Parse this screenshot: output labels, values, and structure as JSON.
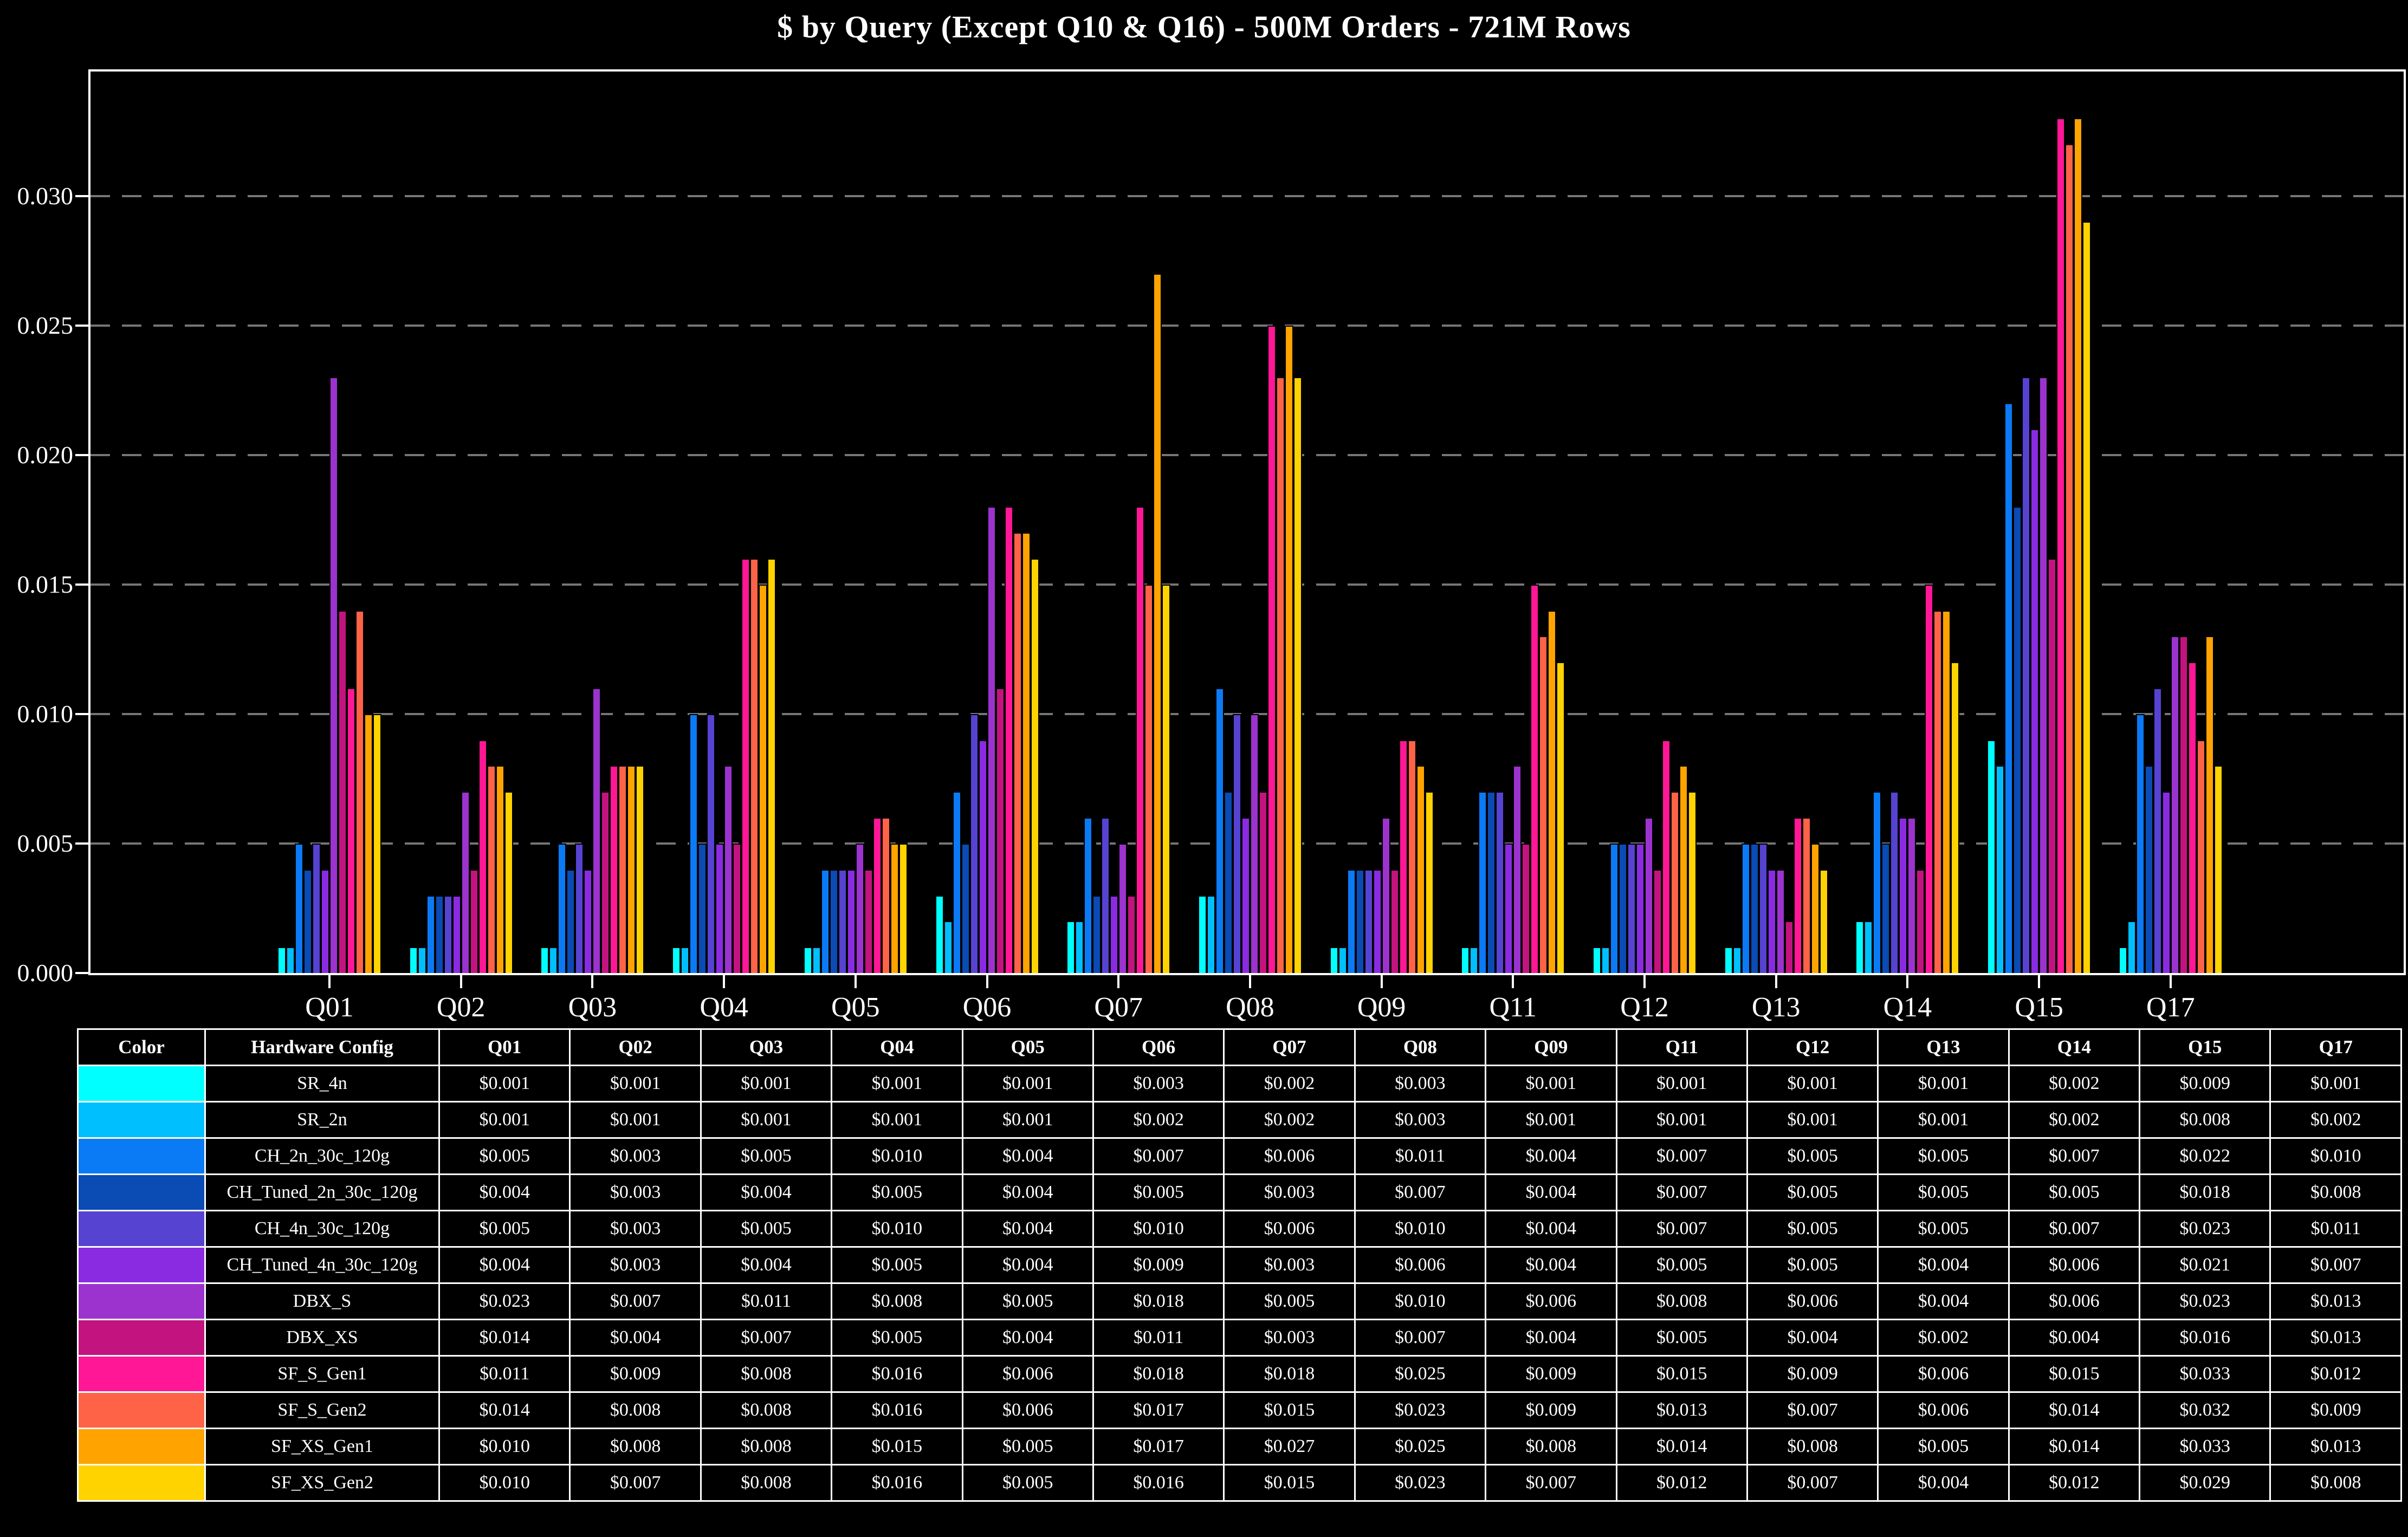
{
  "title": "$ by Query (Except Q10 & Q16) - 500M Orders - 721M Rows",
  "chart_data": {
    "type": "bar",
    "title": "$ by Query (Except Q10 & Q16) - 500M Orders - 721M Rows",
    "xlabel": "",
    "ylabel": "",
    "ylim": [
      0,
      0.0348
    ],
    "y_ticks": [
      0.0,
      0.005,
      0.01,
      0.015,
      0.02,
      0.025,
      0.03
    ],
    "grid": "horizontal-dashed",
    "legend_position": "table-below-chart",
    "categories": [
      "Q01",
      "Q02",
      "Q03",
      "Q04",
      "Q05",
      "Q06",
      "Q07",
      "Q08",
      "Q09",
      "Q11",
      "Q12",
      "Q13",
      "Q14",
      "Q15",
      "Q17"
    ],
    "series": [
      {
        "name": "SR_4n",
        "color": "#00FFFF",
        "values": [
          0.001,
          0.001,
          0.001,
          0.001,
          0.001,
          0.003,
          0.002,
          0.003,
          0.001,
          0.001,
          0.001,
          0.001,
          0.002,
          0.009,
          0.001
        ]
      },
      {
        "name": "SR_2n",
        "color": "#00BFFF",
        "values": [
          0.001,
          0.001,
          0.001,
          0.001,
          0.001,
          0.002,
          0.002,
          0.003,
          0.001,
          0.001,
          0.001,
          0.001,
          0.002,
          0.008,
          0.002
        ]
      },
      {
        "name": "CH_2n_30c_120g",
        "color": "#0B7AF5",
        "values": [
          0.005,
          0.003,
          0.005,
          0.01,
          0.004,
          0.007,
          0.006,
          0.011,
          0.004,
          0.007,
          0.005,
          0.005,
          0.007,
          0.022,
          0.01
        ]
      },
      {
        "name": "CH_Tuned_2n_30c_120g",
        "color": "#0A4BB4",
        "values": [
          0.004,
          0.003,
          0.004,
          0.005,
          0.004,
          0.005,
          0.003,
          0.007,
          0.004,
          0.007,
          0.005,
          0.005,
          0.005,
          0.018,
          0.008
        ]
      },
      {
        "name": "CH_4n_30c_120g",
        "color": "#5643D1",
        "values": [
          0.005,
          0.003,
          0.005,
          0.01,
          0.004,
          0.01,
          0.006,
          0.01,
          0.004,
          0.007,
          0.005,
          0.005,
          0.007,
          0.023,
          0.011
        ]
      },
      {
        "name": "CH_Tuned_4n_30c_120g",
        "color": "#8A2BE2",
        "values": [
          0.004,
          0.003,
          0.004,
          0.005,
          0.004,
          0.009,
          0.003,
          0.006,
          0.004,
          0.005,
          0.005,
          0.004,
          0.006,
          0.021,
          0.007
        ]
      },
      {
        "name": "DBX_S",
        "color": "#9C33CE",
        "values": [
          0.023,
          0.007,
          0.011,
          0.008,
          0.005,
          0.018,
          0.005,
          0.01,
          0.006,
          0.008,
          0.006,
          0.004,
          0.006,
          0.023,
          0.013
        ]
      },
      {
        "name": "DBX_XS",
        "color": "#C3137F",
        "values": [
          0.014,
          0.004,
          0.007,
          0.005,
          0.004,
          0.011,
          0.003,
          0.007,
          0.004,
          0.005,
          0.004,
          0.002,
          0.004,
          0.016,
          0.013
        ]
      },
      {
        "name": "SF_S_Gen1",
        "color": "#FF1795",
        "values": [
          0.011,
          0.009,
          0.008,
          0.016,
          0.006,
          0.018,
          0.018,
          0.025,
          0.009,
          0.015,
          0.009,
          0.006,
          0.015,
          0.033,
          0.012
        ]
      },
      {
        "name": "SF_S_Gen2",
        "color": "#FF6347",
        "values": [
          0.014,
          0.008,
          0.008,
          0.016,
          0.006,
          0.017,
          0.015,
          0.023,
          0.009,
          0.013,
          0.007,
          0.006,
          0.014,
          0.032,
          0.009
        ]
      },
      {
        "name": "SF_XS_Gen1",
        "color": "#FFA300",
        "values": [
          0.01,
          0.008,
          0.008,
          0.015,
          0.005,
          0.017,
          0.027,
          0.025,
          0.008,
          0.014,
          0.008,
          0.005,
          0.014,
          0.033,
          0.013
        ]
      },
      {
        "name": "SF_XS_Gen2",
        "color": "#FFD300",
        "values": [
          0.01,
          0.007,
          0.008,
          0.016,
          0.005,
          0.016,
          0.015,
          0.023,
          0.007,
          0.012,
          0.007,
          0.004,
          0.012,
          0.029,
          0.008
        ]
      }
    ]
  },
  "table": {
    "headers": [
      "Color",
      "Hardware Config",
      "Q01",
      "Q02",
      "Q03",
      "Q04",
      "Q05",
      "Q06",
      "Q07",
      "Q08",
      "Q09",
      "Q11",
      "Q12",
      "Q13",
      "Q14",
      "Q15",
      "Q17"
    ],
    "value_prefix": "$"
  },
  "colors": {
    "background": "#000000",
    "text": "#FFFFFF",
    "axis": "#FFFFFF",
    "grid": "#767676",
    "bar_outline": "#000000"
  }
}
